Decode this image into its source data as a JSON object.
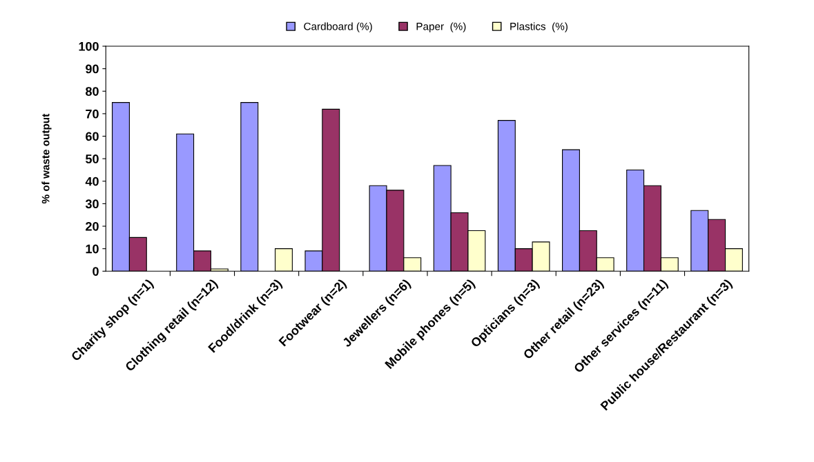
{
  "chart_data": {
    "type": "bar",
    "ylabel": "% of waste output",
    "categories": [
      "Charity shop (n=1)",
      "Clothing retail (n=12)",
      "Food/drink (n=3)",
      "Footwear (n=2)",
      "Jewellers (n=6)",
      "Mobile phones (n=5)",
      "Opticians (n=3)",
      "Other retail (n=23)",
      "Other services (n=11)",
      "Public house/Restaurant (n=3)"
    ],
    "series": [
      {
        "name": "Cardboard (%)",
        "color": "#9999ff",
        "values": [
          75,
          61,
          75,
          9,
          38,
          47,
          67,
          54,
          45,
          27
        ]
      },
      {
        "name": "Paper  (%)",
        "color": "#993366",
        "values": [
          15,
          9,
          null,
          72,
          36,
          26,
          10,
          18,
          38,
          23
        ]
      },
      {
        "name": "Plastics  (%)",
        "color": "#ffffcc",
        "values": [
          null,
          1,
          10,
          null,
          6,
          18,
          13,
          6,
          6,
          10
        ]
      }
    ],
    "ylim": [
      0,
      100
    ],
    "yticks": [
      0,
      10,
      20,
      30,
      40,
      50,
      60,
      70,
      80,
      90,
      100
    ],
    "grid": false,
    "legend": "top"
  }
}
